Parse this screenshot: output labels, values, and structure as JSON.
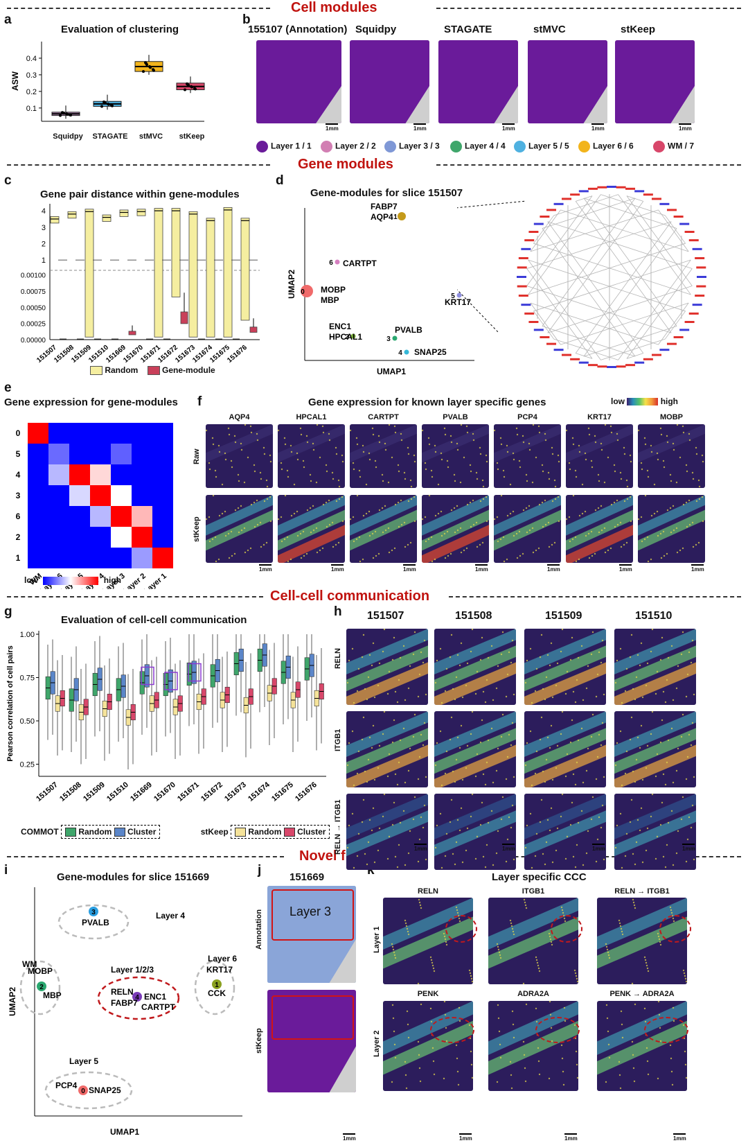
{
  "sections": {
    "cell_modules": "Cell modules",
    "gene_modules": "Gene modules",
    "ccc": "Cell-cell communication",
    "novel": "Novel findings"
  },
  "panel_letters": [
    "a",
    "b",
    "c",
    "d",
    "e",
    "f",
    "g",
    "h",
    "i",
    "j",
    "k"
  ],
  "scale_label": "1mm",
  "a": {
    "title": "Evaluation of clustering",
    "ylabel": "ASW",
    "yticks": [
      "0.1",
      "0.2",
      "0.3",
      "0.4"
    ],
    "colors": [
      "#b78ab7",
      "#4fb1e0",
      "#f2b41c",
      "#d8476a"
    ]
  },
  "b": {
    "titles": [
      "155107 (Annotation)",
      "Squidpy",
      "STAGATE",
      "stMVC",
      "stKeep"
    ],
    "legend": [
      {
        "label": "Layer 1 / 1",
        "color": "#6a1b9a"
      },
      {
        "label": "Layer 2 / 2",
        "color": "#d27fb3"
      },
      {
        "label": "Layer 3 / 3",
        "color": "#7f98d6"
      },
      {
        "label": "Layer 4 / 4",
        "color": "#3fa66b"
      },
      {
        "label": "Layer 5 / 5",
        "color": "#4fb1e0"
      },
      {
        "label": "Layer 6 / 6",
        "color": "#f2b41c"
      },
      {
        "label": "WM / 7",
        "color": "#d8476a"
      }
    ]
  },
  "c": {
    "title": "Gene pair distance within gene-modules",
    "yticks_top": [
      "1",
      "2",
      "3",
      "4"
    ],
    "yticks_bottom": [
      "0.00000",
      "0.00025",
      "0.00050",
      "0.00075",
      "0.00100"
    ],
    "legend_random": "Random",
    "legend_gm": "Gene-module"
  },
  "d": {
    "title": "Gene-modules for slice 151507",
    "xlabel": "UMAP1",
    "ylabel": "UMAP2",
    "cluster_labels": [
      {
        "id": "1",
        "genes": "FABP7\nAQP4",
        "color": "#c49a1a"
      },
      {
        "id": "6",
        "genes": "CARTPT",
        "color": "#d67fc0"
      },
      {
        "id": "0",
        "genes": "MOBP\nMBP",
        "color": "#f06a6a"
      },
      {
        "id": "5",
        "genes": "KRT17",
        "color": "#8f8fe0"
      },
      {
        "id": "2",
        "genes": "ENC1\nHPCAL1",
        "color": "#7ab03a"
      },
      {
        "id": "3",
        "genes": "PVALB",
        "color": "#2aa870"
      },
      {
        "id": "4",
        "genes": "SNAP25",
        "color": "#35b8d8"
      }
    ]
  },
  "e": {
    "title": "Gene expression for gene-modules",
    "rows": [
      "0",
      "5",
      "4",
      "3",
      "6",
      "2",
      "1"
    ],
    "cols": [
      "WM",
      "Layer 6",
      "Layer 5",
      "Layer 4",
      "Layer 3",
      "Layer 2",
      "Layer 1"
    ],
    "low": "low",
    "high": "high"
  },
  "f": {
    "title": "Gene expression for known layer specific genes",
    "genes": [
      "AQP4",
      "HPCAL1",
      "CARTPT",
      "PVALB",
      "PCP4",
      "KRT1\n7",
      "MOBP"
    ],
    "rows": [
      "Raw",
      "stKeep"
    ],
    "low": "low",
    "high": "high"
  },
  "g": {
    "title": "Evaluation of cell-cell communication",
    "ylabel": "Pearson correlation of cell pairs",
    "yticks": [
      "0.25",
      "0.50",
      "0.75",
      "1.00"
    ],
    "legend_commot": "COMMOT",
    "legend_stkeep": "stKeep",
    "legend_random": "Random",
    "legend_cluster": "Cluster"
  },
  "h": {
    "cols": [
      "151507",
      "151508",
      "151509",
      "151510"
    ],
    "rows": [
      "RELN",
      "ITGB1",
      "RELN → ITGB1"
    ]
  },
  "i": {
    "title": "Gene-modules for slice 151669",
    "xlabel": "UMAP1",
    "ylabel": "UMAP2",
    "groups": [
      {
        "layer": "Layer 4",
        "genes": "PVALB",
        "id": "3"
      },
      {
        "layer": "WM",
        "genes": "MOBP\nMBP",
        "id": "2"
      },
      {
        "layer": "Layer 1/2/3",
        "genes": "RELN\nFABP7",
        "genes2": "ENC1\nCARTPT",
        "id": "4"
      },
      {
        "layer": "Layer 6",
        "genes": "KRT17\nCCK",
        "id": "1"
      },
      {
        "layer": "Layer 5",
        "genes": "PCP4",
        "genes2": "SNAP25",
        "id": "0"
      }
    ]
  },
  "j": {
    "title": "151669",
    "rows": [
      "Annotation",
      "stKeep"
    ],
    "layer_label": "Layer 3"
  },
  "k": {
    "title": "Layer specific CCC",
    "top": [
      "RELN",
      "ITGB1",
      "RELN → ITGB1"
    ],
    "bottom": [
      "PENK",
      "ADRA2A",
      "PENK → ADRA2A"
    ],
    "rows": [
      "Layer 1",
      "Layer 2"
    ]
  },
  "slices": [
    "151507",
    "151508",
    "151509",
    "151510",
    "151669",
    "151670",
    "151671",
    "151672",
    "151673",
    "151674",
    "151675",
    "151676"
  ],
  "chart_data": [
    {
      "type": "box",
      "panel": "a",
      "title": "Evaluation of clustering",
      "ylabel": "ASW",
      "categories": [
        "Squidpy",
        "STAGATE",
        "stMVC",
        "stKeep"
      ],
      "median": [
        0.065,
        0.125,
        0.35,
        0.23
      ],
      "q1": [
        0.055,
        0.11,
        0.32,
        0.21
      ],
      "q3": [
        0.075,
        0.14,
        0.38,
        0.25
      ],
      "ylim": [
        0.02,
        0.5
      ]
    },
    {
      "type": "box",
      "panel": "c",
      "title": "Gene pair distance within gene-modules",
      "categories": [
        "151507",
        "151508",
        "151509",
        "151510",
        "151669",
        "151670",
        "151671",
        "151672",
        "151673",
        "151674",
        "151675",
        "151676"
      ],
      "series": [
        {
          "name": "Random",
          "median": [
            3.5,
            3.8,
            3.95,
            3.6,
            3.9,
            3.95,
            4.0,
            4.0,
            3.8,
            3.4,
            4.05,
            3.4
          ]
        },
        {
          "name": "Gene-module",
          "median": [
            0,
            0,
            0,
            0,
            0.0001,
            0,
            0,
            0.00033,
            0,
            0,
            0,
            0.00015
          ]
        }
      ]
    },
    {
      "type": "box",
      "panel": "g",
      "title": "Evaluation of cell-cell communication",
      "ylabel": "Pearson correlation of cell pairs",
      "categories": [
        "151507",
        "151508",
        "151509",
        "151510",
        "151669",
        "151670",
        "151671",
        "151672",
        "151673",
        "151674",
        "151675",
        "151676"
      ],
      "ylim": [
        0.18,
        1.02
      ],
      "series": [
        {
          "name": "COMMOT Random",
          "median": [
            0.69,
            0.62,
            0.71,
            0.68,
            0.72,
            0.71,
            0.77,
            0.76,
            0.83,
            0.85,
            0.78,
            0.8
          ]
        },
        {
          "name": "COMMOT Cluster",
          "median": [
            0.72,
            0.68,
            0.74,
            0.7,
            0.76,
            0.73,
            0.78,
            0.79,
            0.85,
            0.88,
            0.81,
            0.82
          ]
        },
        {
          "name": "stKeep Random",
          "median": [
            0.6,
            0.55,
            0.57,
            0.52,
            0.6,
            0.58,
            0.61,
            0.62,
            0.59,
            0.66,
            0.62,
            0.63
          ]
        },
        {
          "name": "stKeep Cluster",
          "median": [
            0.63,
            0.58,
            0.61,
            0.55,
            0.62,
            0.6,
            0.64,
            0.65,
            0.64,
            0.7,
            0.68,
            0.67
          ]
        }
      ]
    }
  ]
}
